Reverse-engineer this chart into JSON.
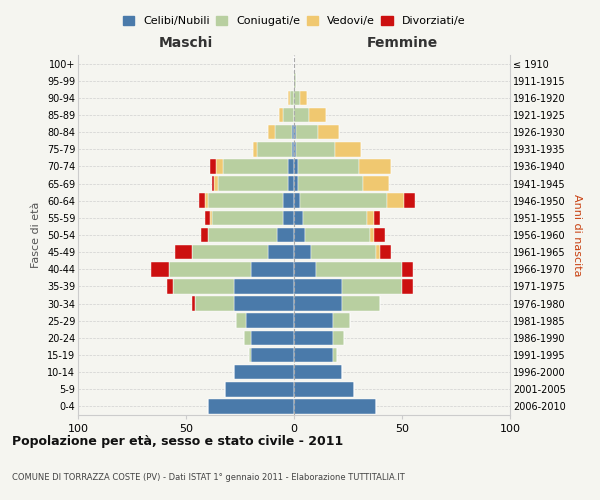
{
  "age_groups": [
    "0-4",
    "5-9",
    "10-14",
    "15-19",
    "20-24",
    "25-29",
    "30-34",
    "35-39",
    "40-44",
    "45-49",
    "50-54",
    "55-59",
    "60-64",
    "65-69",
    "70-74",
    "75-79",
    "80-84",
    "85-89",
    "90-94",
    "95-99",
    "100+"
  ],
  "birth_years": [
    "2006-2010",
    "2001-2005",
    "1996-2000",
    "1991-1995",
    "1986-1990",
    "1981-1985",
    "1976-1980",
    "1971-1975",
    "1966-1970",
    "1961-1965",
    "1956-1960",
    "1951-1955",
    "1946-1950",
    "1941-1945",
    "1936-1940",
    "1931-1935",
    "1926-1930",
    "1921-1925",
    "1916-1920",
    "1911-1915",
    "≤ 1910"
  ],
  "colors": {
    "celibe": "#4a7aaa",
    "coniugato": "#b8cfa0",
    "vedovo": "#f0c870",
    "divorziato": "#cc1010"
  },
  "maschi": {
    "celibe": [
      40,
      32,
      28,
      20,
      20,
      22,
      28,
      28,
      20,
      12,
      8,
      5,
      5,
      3,
      3,
      1,
      1,
      0,
      0,
      0,
      0
    ],
    "coniugato": [
      0,
      0,
      0,
      1,
      3,
      5,
      18,
      28,
      38,
      35,
      32,
      33,
      35,
      32,
      30,
      16,
      8,
      5,
      2,
      0,
      0
    ],
    "vedovo": [
      0,
      0,
      0,
      0,
      0,
      0,
      0,
      0,
      0,
      0,
      0,
      1,
      1,
      2,
      3,
      2,
      3,
      2,
      1,
      0,
      0
    ],
    "divorziato": [
      0,
      0,
      0,
      0,
      0,
      0,
      1,
      3,
      8,
      8,
      3,
      2,
      3,
      1,
      3,
      0,
      0,
      0,
      0,
      0,
      0
    ]
  },
  "femmine": {
    "nubile": [
      38,
      28,
      22,
      18,
      18,
      18,
      22,
      22,
      10,
      8,
      5,
      4,
      3,
      2,
      2,
      1,
      1,
      0,
      0,
      0,
      0
    ],
    "coniugata": [
      0,
      0,
      0,
      2,
      5,
      8,
      18,
      28,
      40,
      30,
      30,
      30,
      40,
      30,
      28,
      18,
      10,
      7,
      3,
      1,
      0
    ],
    "vedova": [
      0,
      0,
      0,
      0,
      0,
      0,
      0,
      0,
      0,
      2,
      2,
      3,
      8,
      12,
      15,
      12,
      10,
      8,
      3,
      0,
      0
    ],
    "divorziata": [
      0,
      0,
      0,
      0,
      0,
      0,
      0,
      5,
      5,
      5,
      5,
      3,
      5,
      0,
      0,
      0,
      0,
      0,
      0,
      0,
      0
    ]
  },
  "xlim": 100,
  "title": "Popolazione per età, sesso e stato civile - 2011",
  "subtitle": "COMUNE DI TORRAZZA COSTE (PV) - Dati ISTAT 1° gennaio 2011 - Elaborazione TUTTITALIA.IT",
  "ylabel": "Fasce di età",
  "ylabel_right": "Anni di nascita",
  "legend_labels": [
    "Celibi/Nubili",
    "Coniugati/e",
    "Vedovi/e",
    "Divorziati/e"
  ],
  "maschi_label": "Maschi",
  "femmine_label": "Femmine",
  "bg_color": "#f5f5f0",
  "bar_height": 0.85
}
